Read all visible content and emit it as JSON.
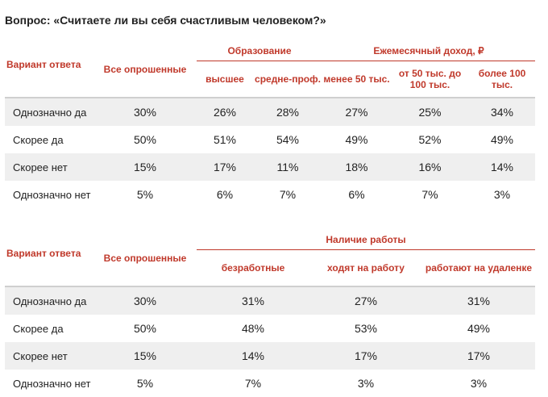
{
  "question": "Вопрос: «Считаете ли вы себя счастливым человеком?»",
  "colors": {
    "accent": "#c0392b",
    "stripe": "#efefef"
  },
  "table1": {
    "variant_header": "Вариант ответа",
    "all_header": "Все опрошенные",
    "group1_header": "Образование",
    "group1_cols": [
      "высшее",
      "средне-проф."
    ],
    "group2_header": "Ежемесячный доход, ₽",
    "group2_cols": [
      "менее 50 тыс.",
      "от 50 тыс. до 100 тыс.",
      "более 100 тыс."
    ],
    "rows": [
      {
        "label": "Однозначно да",
        "values": [
          "30%",
          "26%",
          "28%",
          "27%",
          "25%",
          "34%"
        ]
      },
      {
        "label": "Скорее да",
        "values": [
          "50%",
          "51%",
          "54%",
          "49%",
          "52%",
          "49%"
        ]
      },
      {
        "label": "Скорее нет",
        "values": [
          "15%",
          "17%",
          "11%",
          "18%",
          "16%",
          "14%"
        ]
      },
      {
        "label": "Однозначно нет",
        "values": [
          "5%",
          "6%",
          "7%",
          "6%",
          "7%",
          "3%"
        ]
      }
    ]
  },
  "table2": {
    "variant_header": "Вариант ответа",
    "all_header": "Все опрошенные",
    "group_header": "Наличие работы",
    "group_cols": [
      "безработные",
      "ходят на работу",
      "работают на удаленке"
    ],
    "rows": [
      {
        "label": "Однозначно да",
        "values": [
          "30%",
          "31%",
          "27%",
          "31%"
        ]
      },
      {
        "label": "Скорее да",
        "values": [
          "50%",
          "48%",
          "53%",
          "49%"
        ]
      },
      {
        "label": "Скорее нет",
        "values": [
          "15%",
          "14%",
          "17%",
          "17%"
        ]
      },
      {
        "label": "Однозначно нет",
        "values": [
          "5%",
          "7%",
          "3%",
          "3%"
        ]
      }
    ]
  }
}
